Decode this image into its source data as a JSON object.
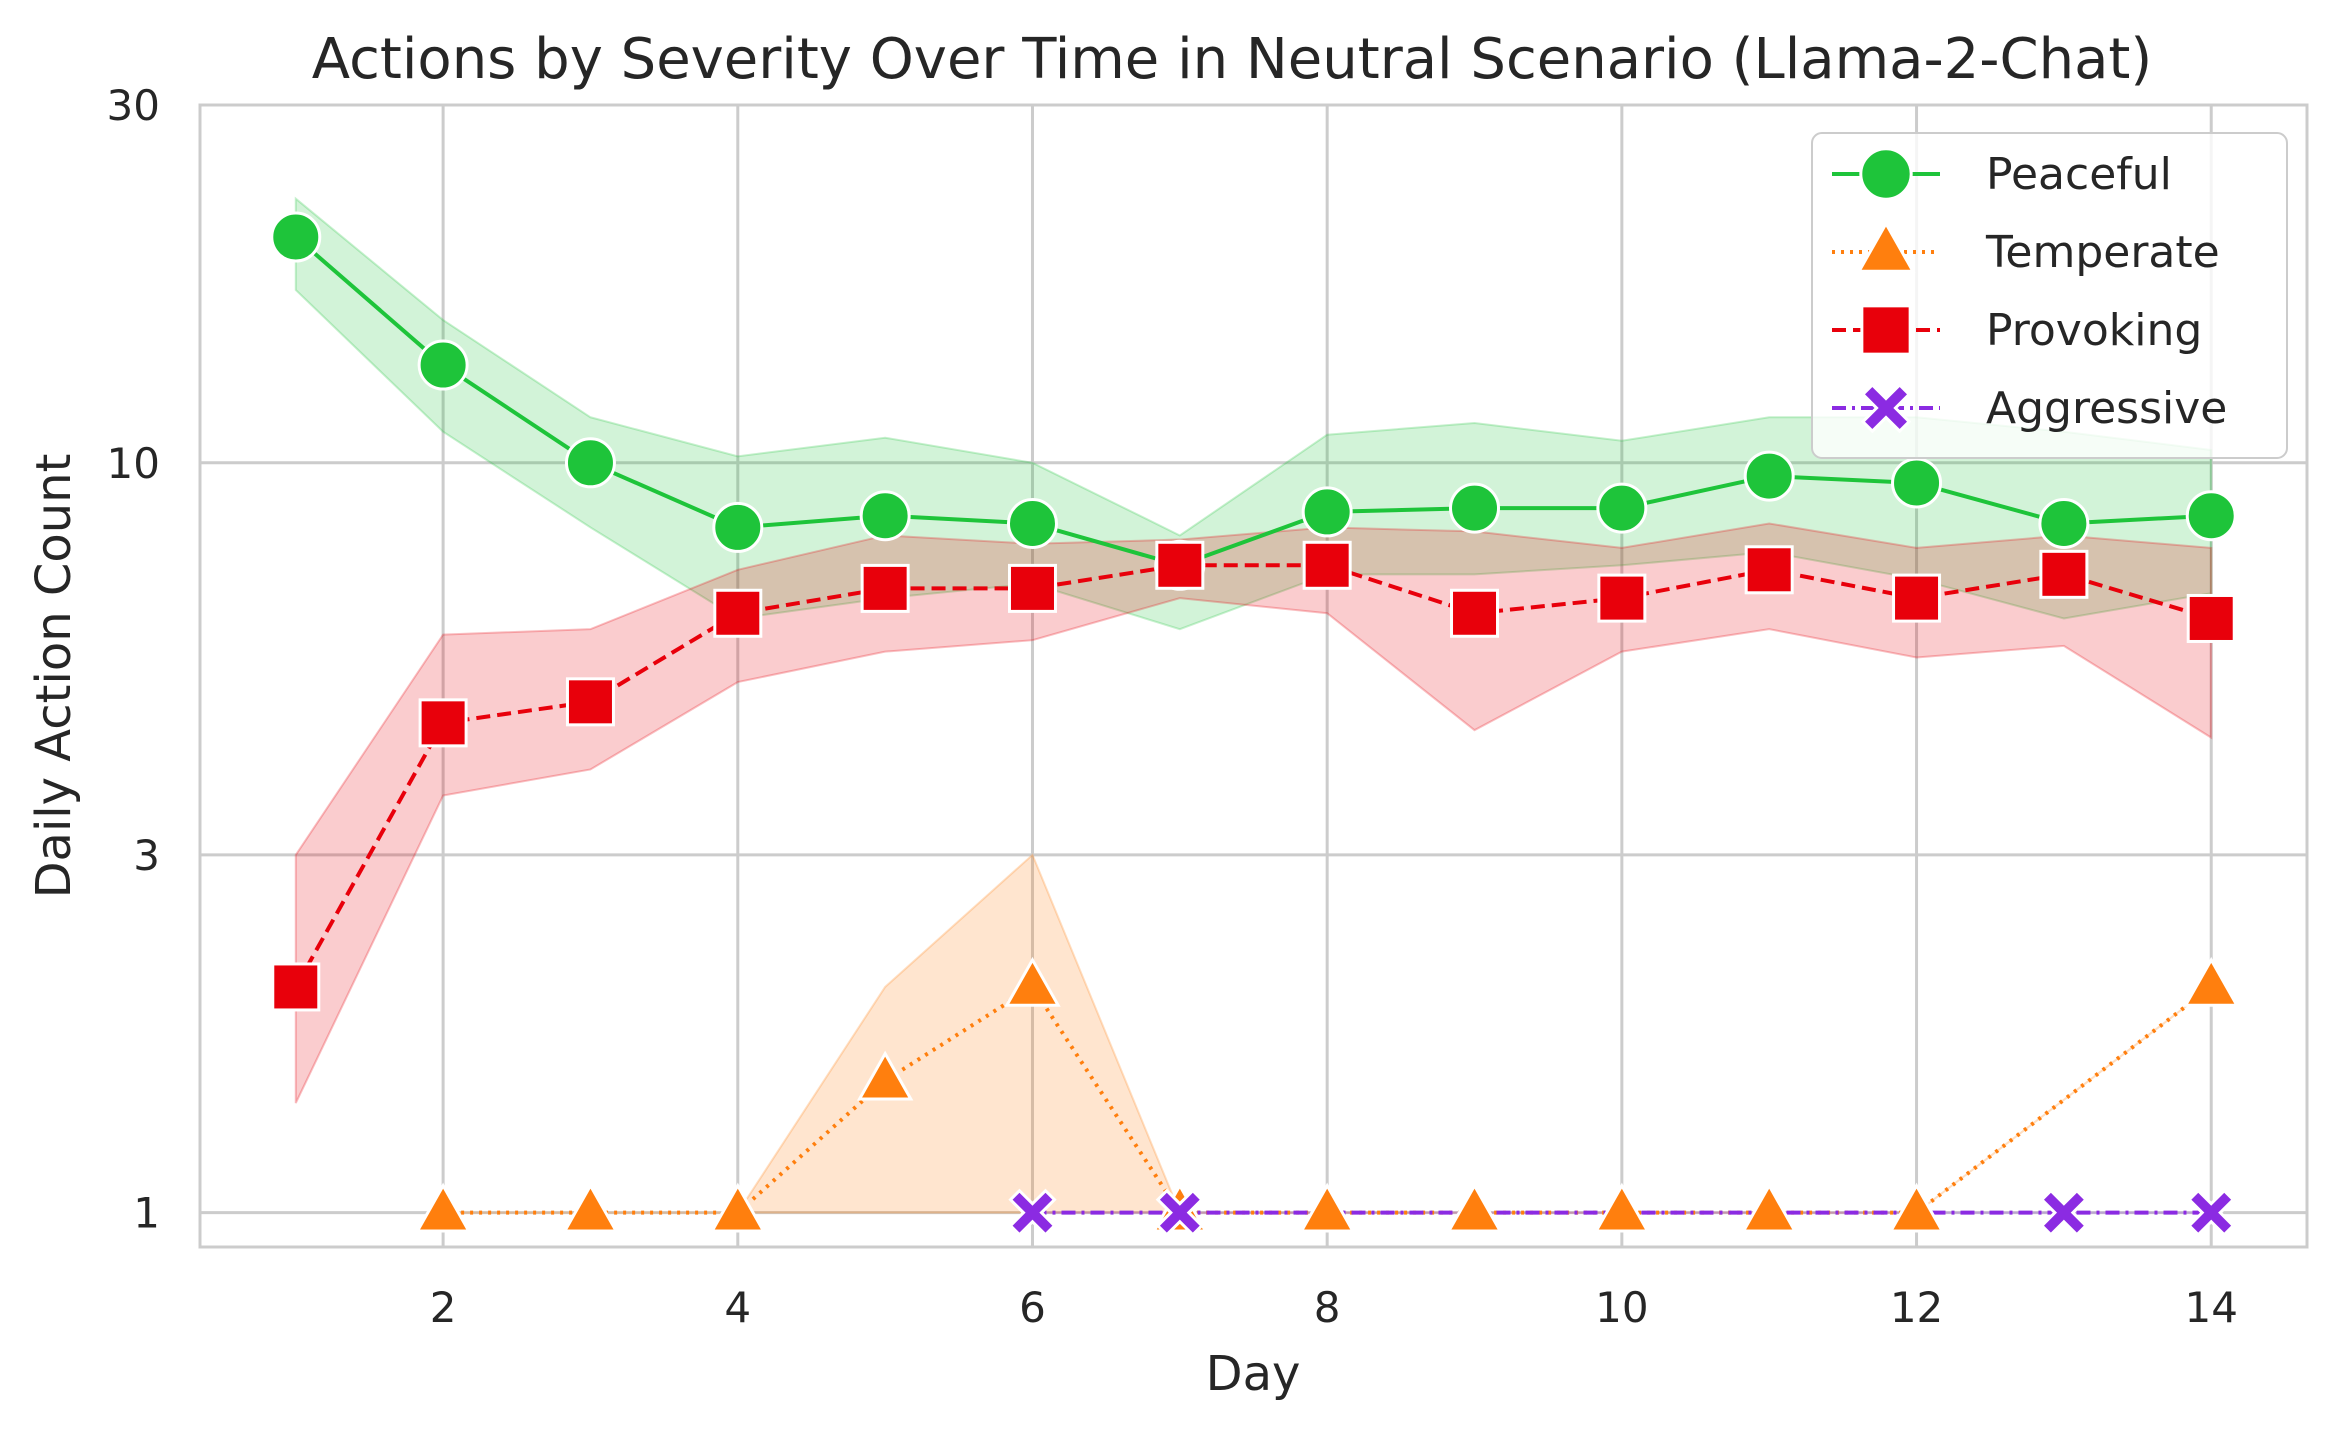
{
  "chart_data": {
    "type": "line",
    "title": "Actions by Severity Over Time in Neutral Scenario (Llama-2-Chat)",
    "xlabel": "Day",
    "ylabel": "Daily Action Count",
    "y_scale": "log",
    "xlim": [
      0.35,
      14.65
    ],
    "ylim": [
      0.9,
      30
    ],
    "x_ticks": [
      2,
      4,
      6,
      8,
      10,
      12,
      14
    ],
    "y_ticks": [
      1,
      3,
      10,
      30
    ],
    "grid": true,
    "legend_position": "top-right",
    "series": [
      {
        "name": "Peaceful",
        "color": "#1ec43a",
        "marker": "circle",
        "line_style": "solid",
        "x": [
          1,
          2,
          3,
          4,
          5,
          6,
          7,
          8,
          9,
          10,
          11,
          12,
          13,
          14
        ],
        "y": [
          20.0,
          13.5,
          10.0,
          8.2,
          8.5,
          8.3,
          7.3,
          8.6,
          8.7,
          8.7,
          9.6,
          9.4,
          8.3,
          8.5
        ],
        "ci_low": [
          17.0,
          11.0,
          8.2,
          6.2,
          6.6,
          6.9,
          6.0,
          7.1,
          7.1,
          7.3,
          7.6,
          7.0,
          6.2,
          6.7
        ],
        "ci_high": [
          22.5,
          15.5,
          11.5,
          10.2,
          10.8,
          10.0,
          8.0,
          10.9,
          11.3,
          10.7,
          11.5,
          11.5,
          11.0,
          10.4
        ]
      },
      {
        "name": "Temperate",
        "color": "#ff7f0e",
        "marker": "triangle",
        "line_style": "dotted",
        "x": [
          2,
          3,
          4,
          5,
          6,
          7,
          8,
          9,
          10,
          11,
          12,
          14
        ],
        "y": [
          1.0,
          1.0,
          1.0,
          1.5,
          2.0,
          1.0,
          1.0,
          1.0,
          1.0,
          1.0,
          1.0,
          2.0
        ],
        "ci_low": [
          1.0,
          1.0,
          1.0,
          1.0,
          1.0,
          1.0,
          1.0,
          1.0,
          1.0,
          1.0,
          1.0,
          2.0
        ],
        "ci_high": [
          1.0,
          1.0,
          1.0,
          2.0,
          3.0,
          1.0,
          1.0,
          1.0,
          1.0,
          1.0,
          1.0,
          2.0
        ]
      },
      {
        "name": "Provoking",
        "color": "#e8000b",
        "marker": "square",
        "line_style": "dashed",
        "x": [
          1,
          2,
          3,
          4,
          5,
          6,
          7,
          8,
          9,
          10,
          11,
          12,
          13,
          14
        ],
        "y": [
          2.0,
          4.5,
          4.8,
          6.3,
          6.8,
          6.8,
          7.3,
          7.3,
          6.3,
          6.6,
          7.2,
          6.6,
          7.1,
          6.2
        ],
        "ci_low": [
          1.4,
          3.6,
          3.9,
          5.1,
          5.6,
          5.8,
          6.6,
          6.3,
          4.4,
          5.6,
          6.0,
          5.5,
          5.7,
          4.3
        ],
        "ci_high": [
          3.0,
          5.9,
          6.0,
          7.2,
          8.0,
          7.8,
          7.9,
          8.2,
          8.1,
          7.7,
          8.3,
          7.7,
          8.0,
          7.7
        ]
      },
      {
        "name": "Aggressive",
        "color": "#8b2be2",
        "marker": "x",
        "line_style": "dashdot",
        "x": [
          6,
          7,
          13,
          14
        ],
        "y": [
          1.0,
          1.0,
          1.0,
          1.0
        ],
        "ci_low": [
          1.0,
          1.0,
          1.0,
          1.0
        ],
        "ci_high": [
          1.0,
          1.0,
          1.0,
          1.0
        ]
      }
    ]
  }
}
